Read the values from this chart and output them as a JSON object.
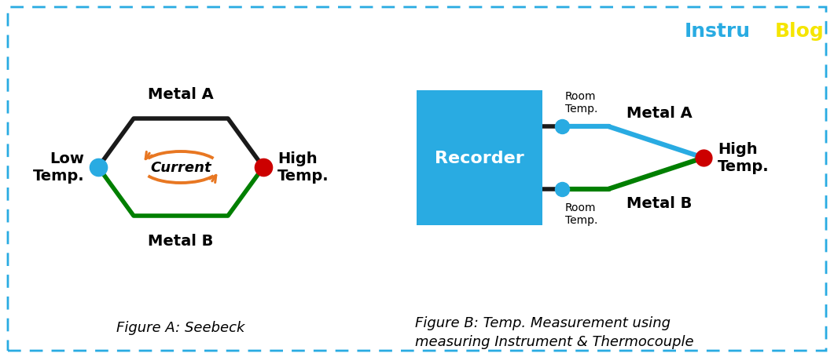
{
  "bg_color": "#ffffff",
  "border_color": "#29abe2",
  "title_instru": "Instru",
  "title_blog": "Blog",
  "title_instru_color": "#29abe2",
  "title_blog_color": "#f5e500",
  "fig_a_caption": "Figure A: Seebeck",
  "fig_b_caption1": "Figure B: Temp. Measurement using",
  "fig_b_caption2": "measuring Instrument & Thermocouple",
  "metal_a_color": "#1a1a1a",
  "metal_b_color": "#007f00",
  "metal_a_blue_color": "#29abe2",
  "low_temp_dot_color": "#29abe2",
  "high_temp_dot_color": "#cc0000",
  "current_arrow_color": "#e87722",
  "recorder_bg": "#29abe2",
  "recorder_text": "Recorder",
  "recorder_text_color": "#ffffff",
  "black_wire_color": "#1a1a1a",
  "label_fontsize": 14,
  "caption_fontsize": 13,
  "logo_fontsize": 18
}
